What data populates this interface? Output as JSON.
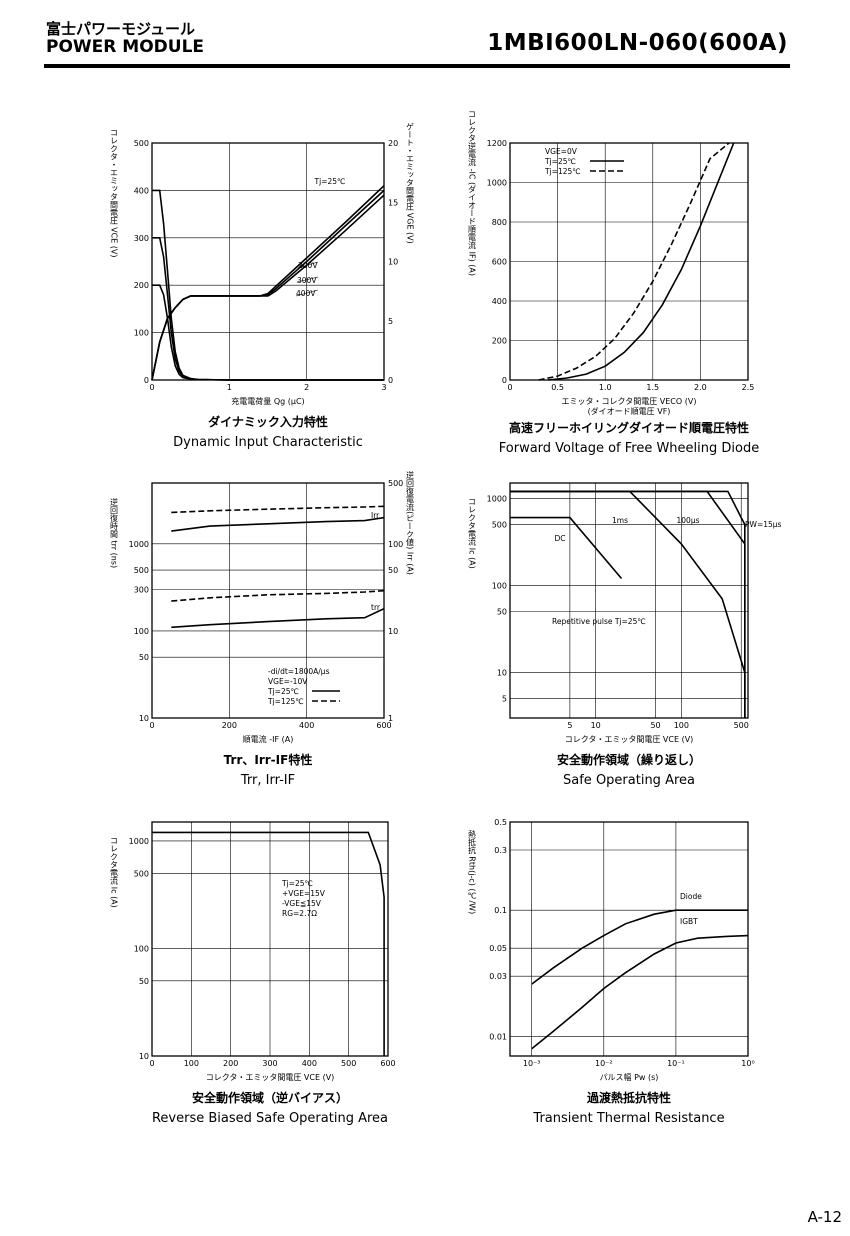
{
  "header": {
    "title_jp": "富士パワーモジュール",
    "title_en": "POWER MODULE",
    "part_number": "1MBI600LN-060(600A)"
  },
  "page_number": "A-12",
  "colors": {
    "ink": "#000000",
    "paper": "#ffffff"
  },
  "chart_data": [
    {
      "id": "dynamic-input",
      "type": "line",
      "title_jp": "ダイナミック入力特性",
      "title_en": "Dynamic Input Characteristic",
      "xlabel": "充電電荷量 Qg (μC)",
      "ylabel_left": "コレクタ・エミッタ間電圧 VCE (V)",
      "ylabel_right": "ゲート・エミッタ間電圧 VGE (V)",
      "xlim": [
        0,
        3
      ],
      "ylim": [
        0,
        500
      ],
      "y2lim": [
        0,
        20
      ],
      "xticks": [
        "0",
        "1",
        "2",
        "3"
      ],
      "yticks": [
        "0",
        "100",
        "200",
        "300",
        "400",
        "500"
      ],
      "y2ticks": [
        "0",
        "5",
        "10",
        "15",
        "20"
      ],
      "grid": true,
      "annotation": "Tj=25℃",
      "series": [
        {
          "name": "200V",
          "axis": "right",
          "dash": false,
          "x": [
            0,
            0.1,
            0.2,
            0.3,
            0.4,
            0.5,
            1.0,
            1.4,
            1.5,
            1.6,
            2.0,
            2.5,
            3.0
          ],
          "y": [
            0,
            3.2,
            5.2,
            6.1,
            6.8,
            7.1,
            7.1,
            7.1,
            7.3,
            7.9,
            10.3,
            13.3,
            16.4
          ]
        },
        {
          "name": "300V",
          "axis": "right",
          "dash": false,
          "x": [
            0,
            0.1,
            0.2,
            0.3,
            0.4,
            0.5,
            1.0,
            1.4,
            1.5,
            1.6,
            2.0,
            2.5,
            3.0
          ],
          "y": [
            0,
            3.2,
            5.2,
            6.1,
            6.8,
            7.1,
            7.1,
            7.1,
            7.2,
            7.7,
            10.0,
            13.0,
            16.0
          ]
        },
        {
          "name": "400V",
          "axis": "right",
          "dash": false,
          "x": [
            0,
            0.1,
            0.2,
            0.3,
            0.4,
            0.5,
            1.0,
            1.4,
            1.5,
            1.6,
            2.0,
            2.5,
            3.0
          ],
          "y": [
            0,
            3.2,
            5.2,
            6.1,
            6.8,
            7.1,
            7.1,
            7.1,
            7.1,
            7.5,
            9.7,
            12.6,
            15.6
          ]
        },
        {
          "name": "VCE 400V",
          "axis": "left",
          "dash": false,
          "x": [
            0,
            0.1,
            0.15,
            0.2,
            0.25,
            0.3,
            0.35,
            0.4,
            0.5,
            0.6,
            1.0,
            3.0
          ],
          "y": [
            400,
            400,
            330,
            230,
            130,
            60,
            25,
            10,
            3,
            1,
            0,
            0
          ]
        },
        {
          "name": "VCE 300V",
          "axis": "left",
          "dash": false,
          "x": [
            0,
            0.1,
            0.15,
            0.2,
            0.25,
            0.3,
            0.35,
            0.4,
            0.5,
            0.6,
            1.0,
            3.0
          ],
          "y": [
            300,
            300,
            260,
            180,
            100,
            45,
            18,
            8,
            2,
            1,
            0,
            0
          ]
        },
        {
          "name": "VCE 200V",
          "axis": "left",
          "dash": false,
          "x": [
            0,
            0.1,
            0.15,
            0.2,
            0.25,
            0.3,
            0.35,
            0.4,
            0.5,
            0.6,
            1.0,
            3.0
          ],
          "y": [
            200,
            200,
            180,
            130,
            70,
            30,
            12,
            5,
            2,
            1,
            0,
            0
          ]
        }
      ]
    },
    {
      "id": "forward-voltage",
      "type": "line",
      "title_jp": "高速フリーホイリングダイオード順電圧特性",
      "title_en": "Forward Voltage of Free Wheeling Diode",
      "xlabel": "エミッタ・コレクタ間電圧 VECO (V)",
      "xlabel2": "(ダイオード順電圧 VF)",
      "ylabel": "コレクタ逆電流 -IC (ダイオード順電流 IF) (A)",
      "xlim": [
        0,
        2.5
      ],
      "ylim": [
        0,
        1200
      ],
      "xticks": [
        "0",
        "0.5",
        "1.0",
        "1.5",
        "2.0",
        "2.5"
      ],
      "yticks": [
        "0",
        "200",
        "400",
        "600",
        "800",
        "1000",
        "1200"
      ],
      "grid": true,
      "legend": [
        "VGE=0V",
        "Tj=25℃",
        "Tj=125℃"
      ],
      "series": [
        {
          "name": "Tj=25℃",
          "dash": false,
          "x": [
            0.4,
            0.6,
            0.8,
            1.0,
            1.2,
            1.4,
            1.6,
            1.8,
            2.0,
            2.2,
            2.35
          ],
          "y": [
            0,
            10,
            30,
            70,
            140,
            240,
            380,
            560,
            780,
            1020,
            1200
          ]
        },
        {
          "name": "Tj=125℃",
          "dash": true,
          "x": [
            0.3,
            0.5,
            0.7,
            0.9,
            1.1,
            1.3,
            1.5,
            1.7,
            1.9,
            2.1,
            2.3
          ],
          "y": [
            0,
            20,
            60,
            120,
            210,
            340,
            500,
            690,
            900,
            1120,
            1200
          ]
        }
      ]
    },
    {
      "id": "trr-irr",
      "type": "line",
      "title_jp": "Trr、Irr-IF特性",
      "title_en": "Trr, Irr-IF",
      "xlabel": "順電流 -IF (A)",
      "ylabel_left": "逆回復時間 trr (ns)",
      "ylabel_right": "逆回復電流(ピーク値) Irr (A)",
      "xlim": [
        0,
        600
      ],
      "ylim": [
        10,
        5000
      ],
      "y2lim": [
        1,
        500
      ],
      "ylog": true,
      "xticks": [
        "0",
        "200",
        "400",
        "600"
      ],
      "yticks": [
        "10",
        "50",
        "100",
        "300",
        "500",
        "1000"
      ],
      "y2ticks": [
        "1",
        "10",
        "50",
        "100",
        "500"
      ],
      "grid": true,
      "conditions": [
        "-di/dt=1800A/μs",
        "VGE=-10V",
        "Tj=25℃",
        "Tj=125℃"
      ],
      "curve_labels": [
        "Irr",
        "trr"
      ],
      "series": [
        {
          "name": "Irr Tj=25℃",
          "axis": "right",
          "dash": false,
          "x": [
            50,
            150,
            300,
            450,
            550,
            600
          ],
          "y": [
            140,
            160,
            170,
            180,
            185,
            200
          ]
        },
        {
          "name": "Irr Tj=125℃",
          "axis": "right",
          "dash": true,
          "x": [
            50,
            150,
            300,
            450,
            550,
            600
          ],
          "y": [
            230,
            240,
            250,
            260,
            265,
            270
          ]
        },
        {
          "name": "trr Tj=25℃",
          "axis": "left",
          "dash": false,
          "x": [
            50,
            150,
            300,
            450,
            550,
            600
          ],
          "y": [
            110,
            118,
            128,
            138,
            142,
            180
          ]
        },
        {
          "name": "trr Tj=125℃",
          "axis": "left",
          "dash": true,
          "x": [
            50,
            150,
            300,
            450,
            550,
            600
          ],
          "y": [
            220,
            240,
            260,
            270,
            280,
            290
          ]
        }
      ]
    },
    {
      "id": "safe-operating-area",
      "type": "line",
      "title_jp": "安全動作領域（繰り返し）",
      "title_en": "Safe Operating Area",
      "xlabel": "コレクタ・エミッタ間電圧 VCE (V)",
      "ylabel": "コレクタ電流 Ic (A)",
      "xlim": [
        1,
        600
      ],
      "ylim": [
        3,
        1500
      ],
      "xlog": true,
      "ylog": true,
      "xticks": [
        "5",
        "10",
        "50",
        "100",
        "500"
      ],
      "yticks": [
        "5",
        "10",
        "50",
        "100",
        "500",
        "1000"
      ],
      "grid": true,
      "annotations": [
        "1ms",
        "100μs",
        "PW=15μs",
        "DC",
        "Repetitive pulse Tj=25℃"
      ],
      "series": [
        {
          "name": "PW=15μs",
          "x": [
            1,
            350,
            500,
            550,
            550
          ],
          "y": [
            1200,
            1200,
            600,
            500,
            3
          ]
        },
        {
          "name": "100μs",
          "x": [
            1,
            200,
            550,
            550
          ],
          "y": [
            1200,
            1200,
            300,
            3
          ]
        },
        {
          "name": "1ms",
          "x": [
            1,
            25,
            100,
            300,
            550,
            550
          ],
          "y": [
            1200,
            1200,
            300,
            70,
            10,
            3
          ]
        },
        {
          "name": "DC",
          "x": [
            1,
            5,
            20
          ],
          "y": [
            600,
            600,
            120
          ]
        }
      ]
    },
    {
      "id": "rbsoa",
      "type": "line",
      "title_jp": "安全動作領域（逆バイアス）",
      "title_en": "Reverse Biased Safe Operating Area",
      "xlabel": "コレクタ・エミッタ間電圧 VCE (V)",
      "ylabel": "コレクタ電流 Ic (A)",
      "xlim": [
        0,
        600
      ],
      "ylim": [
        10,
        1500
      ],
      "ylog": true,
      "xticks": [
        "0",
        "100",
        "200",
        "300",
        "400",
        "500",
        "600"
      ],
      "yticks": [
        "10",
        "50",
        "100",
        "500",
        "1000"
      ],
      "grid": true,
      "conditions": [
        "Tj=25℃",
        "+VGE=15V",
        "-VGE≦15V",
        "RG=2.7Ω"
      ],
      "series": [
        {
          "name": "RBSOA",
          "x": [
            0,
            550,
            580,
            590,
            590
          ],
          "y": [
            1200,
            1200,
            600,
            300,
            10
          ]
        }
      ]
    },
    {
      "id": "transient-thermal",
      "type": "line",
      "title_jp": "過渡熱抵抗特性",
      "title_en": "Transient Thermal Resistance",
      "xlabel": "パルス幅 Pw (s)",
      "ylabel": "熱抵抗 Rth(j-c) (℃/W)",
      "xlim": [
        0.0005,
        1
      ],
      "ylim": [
        0.007,
        0.5
      ],
      "xlog": true,
      "ylog": true,
      "xticks": [
        "10^-3",
        "10^-2",
        "10^-1",
        "10^0"
      ],
      "yticks": [
        "0.01",
        "0.03",
        "0.05",
        "0.1",
        "0.3",
        "0.5"
      ],
      "grid": true,
      "series": [
        {
          "name": "Diode",
          "x": [
            0.001,
            0.002,
            0.005,
            0.01,
            0.02,
            0.05,
            0.1,
            0.2,
            0.5,
            1
          ],
          "y": [
            0.026,
            0.035,
            0.05,
            0.063,
            0.078,
            0.093,
            0.1,
            0.1,
            0.1,
            0.1
          ]
        },
        {
          "name": "IGBT",
          "x": [
            0.001,
            0.002,
            0.005,
            0.01,
            0.02,
            0.05,
            0.1,
            0.2,
            0.5,
            1
          ],
          "y": [
            0.008,
            0.011,
            0.017,
            0.024,
            0.032,
            0.045,
            0.055,
            0.06,
            0.062,
            0.063
          ]
        }
      ]
    }
  ]
}
